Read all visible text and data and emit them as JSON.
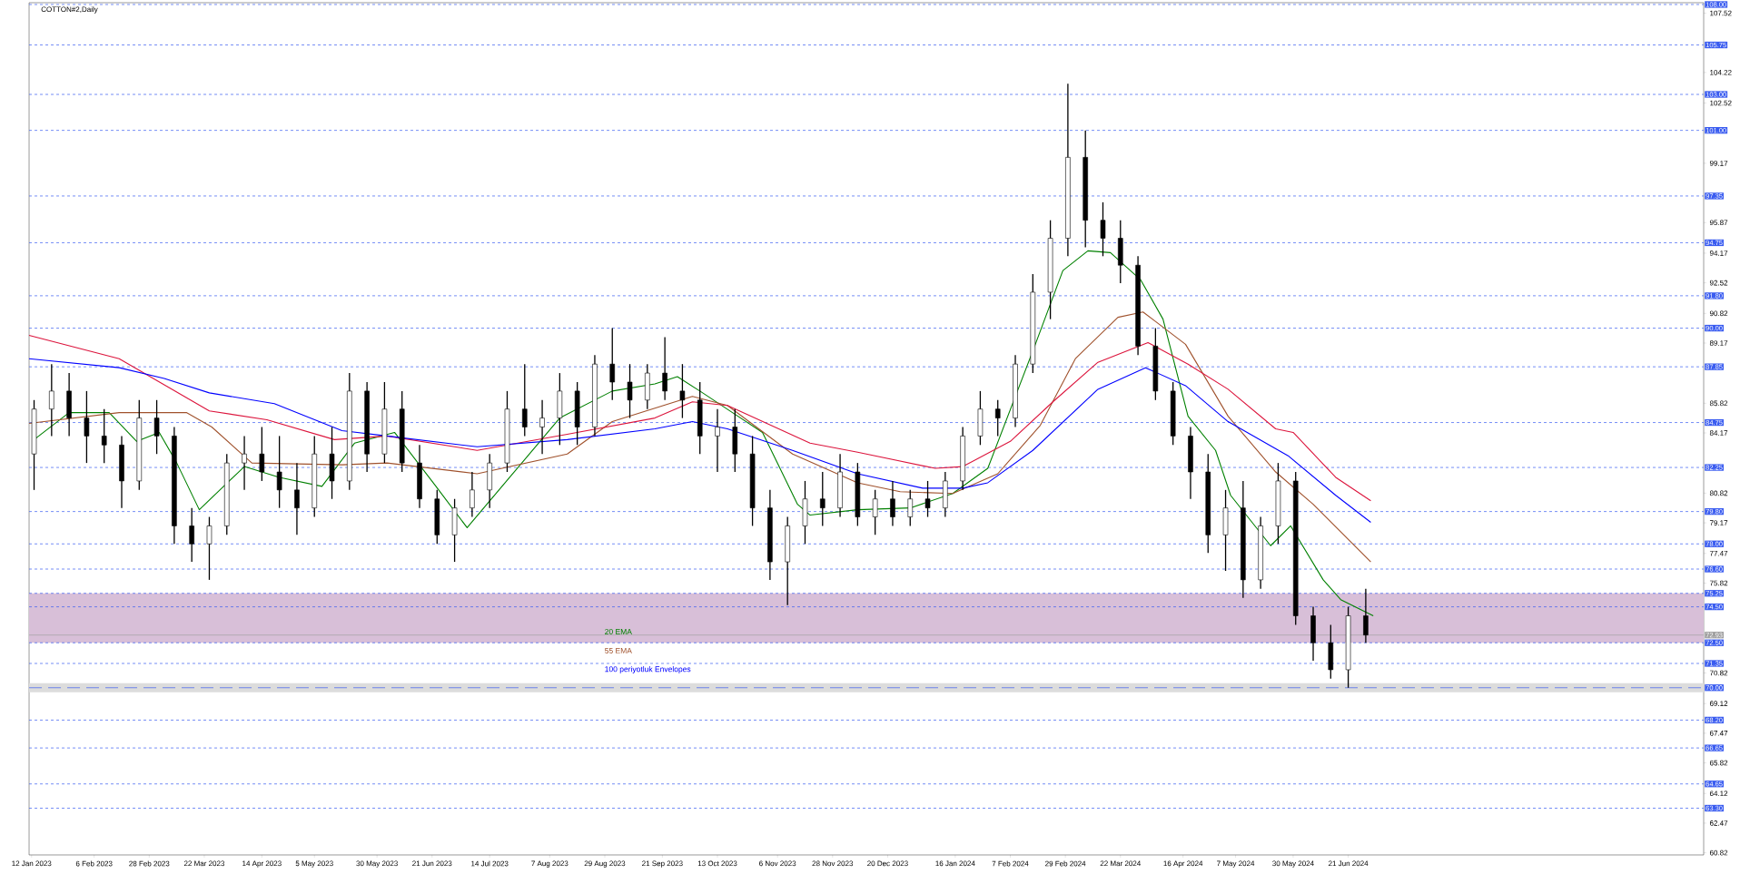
{
  "chart_data": {
    "type": "candlestick",
    "title": "COTTON#2,Daily",
    "xlim": [
      "2023-01-11",
      "2024-11-10"
    ],
    "ylim": [
      60.7,
      108.1
    ],
    "xticks": [
      {
        "value": "2023-01-12",
        "label": "12 Jan 2023"
      },
      {
        "value": "2023-02-06",
        "label": "6 Feb 2023"
      },
      {
        "value": "2023-02-28",
        "label": "28 Feb 2023"
      },
      {
        "value": "2023-03-22",
        "label": "22 Mar 2023"
      },
      {
        "value": "2023-04-14",
        "label": "14 Apr 2023"
      },
      {
        "value": "2023-05-05",
        "label": "5 May 2023"
      },
      {
        "value": "2023-05-30",
        "label": "30 May 2023"
      },
      {
        "value": "2023-06-21",
        "label": "21 Jun 2023"
      },
      {
        "value": "2023-07-14",
        "label": "14 Jul 2023"
      },
      {
        "value": "2023-08-07",
        "label": "7 Aug 2023"
      },
      {
        "value": "2023-08-29",
        "label": "29 Aug 2023"
      },
      {
        "value": "2023-09-21",
        "label": "21 Sep 2023"
      },
      {
        "value": "2023-10-13",
        "label": "13 Oct 2023"
      },
      {
        "value": "2023-11-06",
        "label": "6 Nov 2023"
      },
      {
        "value": "2023-11-28",
        "label": "28 Nov 2023"
      },
      {
        "value": "2023-12-20",
        "label": "20 Dec 2023"
      },
      {
        "value": "2024-01-16",
        "label": "16 Jan 2024"
      },
      {
        "value": "2024-02-07",
        "label": "7 Feb 2024"
      },
      {
        "value": "2024-02-29",
        "label": "29 Feb 2024"
      },
      {
        "value": "2024-03-22",
        "label": "22 Mar 2024"
      },
      {
        "value": "2024-04-16",
        "label": "16 Apr 2024"
      },
      {
        "value": "2024-05-07",
        "label": "7 May 2024"
      },
      {
        "value": "2024-05-30",
        "label": "30 May 2024"
      },
      {
        "value": "2024-06-21",
        "label": "21 Jun 2024"
      }
    ],
    "yticks": [
      107.52,
      104.22,
      102.52,
      99.17,
      95.87,
      94.17,
      92.52,
      90.82,
      89.17,
      85.82,
      84.17,
      80.82,
      79.17,
      77.47,
      75.82,
      70.82,
      69.12,
      67.47,
      65.82,
      64.12,
      62.47,
      60.82
    ],
    "x": [
      "2023-01-13",
      "2023-01-20",
      "2023-01-27",
      "2023-02-03",
      "2023-02-10",
      "2023-02-17",
      "2023-02-24",
      "2023-03-03",
      "2023-03-10",
      "2023-03-17",
      "2023-03-24",
      "2023-03-31",
      "2023-04-07",
      "2023-04-14",
      "2023-04-21",
      "2023-04-28",
      "2023-05-05",
      "2023-05-12",
      "2023-05-19",
      "2023-05-26",
      "2023-06-02",
      "2023-06-09",
      "2023-06-16",
      "2023-06-23",
      "2023-06-30",
      "2023-07-07",
      "2023-07-14",
      "2023-07-21",
      "2023-07-28",
      "2023-08-04",
      "2023-08-11",
      "2023-08-18",
      "2023-08-25",
      "2023-09-01",
      "2023-09-08",
      "2023-09-15",
      "2023-09-22",
      "2023-09-29",
      "2023-10-06",
      "2023-10-13",
      "2023-10-20",
      "2023-10-27",
      "2023-11-03",
      "2023-11-10",
      "2023-11-17",
      "2023-11-24",
      "2023-12-01",
      "2023-12-08",
      "2023-12-15",
      "2023-12-22",
      "2023-12-29",
      "2024-01-05",
      "2024-01-12",
      "2024-01-19",
      "2024-01-26",
      "2024-02-02",
      "2024-02-09",
      "2024-02-16",
      "2024-02-23",
      "2024-03-01",
      "2024-03-08",
      "2024-03-15",
      "2024-03-22",
      "2024-03-29",
      "2024-04-05",
      "2024-04-12",
      "2024-04-19",
      "2024-04-26",
      "2024-05-03",
      "2024-05-10",
      "2024-05-17",
      "2024-05-24",
      "2024-05-31",
      "2024-06-07",
      "2024-06-14",
      "2024-06-21",
      "2024-06-28"
    ],
    "ohlc": [
      [
        83.0,
        86.0,
        81.0,
        85.5
      ],
      [
        85.5,
        88.0,
        84.0,
        86.5
      ],
      [
        86.5,
        87.5,
        84.0,
        85.0
      ],
      [
        85.0,
        86.5,
        82.5,
        84.0
      ],
      [
        84.0,
        85.5,
        82.5,
        83.5
      ],
      [
        83.5,
        84.0,
        80.0,
        81.5
      ],
      [
        81.5,
        86.0,
        81.0,
        85.0
      ],
      [
        85.0,
        86.0,
        83.0,
        84.0
      ],
      [
        84.0,
        84.5,
        78.0,
        79.0
      ],
      [
        79.0,
        80.0,
        77.0,
        78.0
      ],
      [
        78.0,
        79.5,
        76.0,
        79.0
      ],
      [
        79.0,
        83.0,
        78.5,
        82.5
      ],
      [
        82.5,
        84.0,
        81.0,
        83.0
      ],
      [
        83.0,
        84.5,
        81.5,
        82.0
      ],
      [
        82.0,
        84.0,
        80.0,
        81.0
      ],
      [
        81.0,
        82.5,
        78.5,
        80.0
      ],
      [
        80.0,
        84.0,
        79.5,
        83.0
      ],
      [
        83.0,
        84.5,
        80.5,
        81.5
      ],
      [
        81.5,
        87.5,
        81.0,
        86.5
      ],
      [
        86.5,
        87.0,
        82.0,
        83.0
      ],
      [
        83.0,
        87.0,
        82.5,
        85.5
      ],
      [
        85.5,
        86.5,
        82.0,
        82.5
      ],
      [
        82.5,
        83.5,
        80.0,
        80.5
      ],
      [
        80.5,
        81.0,
        78.0,
        78.5
      ],
      [
        78.5,
        80.5,
        77.0,
        80.0
      ],
      [
        80.0,
        82.0,
        79.5,
        81.0
      ],
      [
        81.0,
        83.0,
        80.0,
        82.5
      ],
      [
        82.5,
        86.5,
        82.0,
        85.5
      ],
      [
        85.5,
        88.0,
        84.0,
        84.5
      ],
      [
        84.5,
        86.0,
        83.0,
        85.0
      ],
      [
        85.0,
        87.5,
        83.5,
        86.5
      ],
      [
        86.5,
        87.0,
        83.5,
        84.5
      ],
      [
        84.5,
        88.5,
        84.0,
        88.0
      ],
      [
        88.0,
        90.0,
        86.0,
        87.0
      ],
      [
        87.0,
        88.0,
        85.0,
        86.0
      ],
      [
        86.0,
        88.0,
        85.5,
        87.5
      ],
      [
        87.5,
        89.5,
        86.0,
        86.5
      ],
      [
        86.5,
        88.0,
        85.0,
        86.0
      ],
      [
        86.0,
        87.0,
        83.0,
        84.0
      ],
      [
        84.0,
        85.5,
        82.0,
        84.5
      ],
      [
        84.5,
        85.5,
        82.0,
        83.0
      ],
      [
        83.0,
        84.0,
        79.0,
        80.0
      ],
      [
        80.0,
        81.0,
        76.0,
        77.0
      ],
      [
        77.0,
        79.5,
        74.6,
        79.0
      ],
      [
        79.0,
        81.5,
        78.0,
        80.5
      ],
      [
        80.5,
        82.0,
        79.0,
        80.0
      ],
      [
        80.0,
        83.0,
        79.5,
        82.0
      ],
      [
        82.0,
        82.5,
        79.0,
        79.5
      ],
      [
        79.5,
        81.0,
        78.5,
        80.5
      ],
      [
        80.5,
        81.5,
        79.0,
        79.5
      ],
      [
        79.5,
        81.0,
        79.0,
        80.5
      ],
      [
        80.5,
        81.5,
        79.5,
        80.0
      ],
      [
        80.0,
        82.0,
        79.5,
        81.5
      ],
      [
        81.5,
        84.5,
        81.0,
        84.0
      ],
      [
        84.0,
        86.5,
        83.5,
        85.5
      ],
      [
        85.5,
        86.0,
        84.0,
        85.0
      ],
      [
        85.0,
        88.5,
        84.5,
        88.0
      ],
      [
        88.0,
        93.0,
        87.5,
        92.0
      ],
      [
        92.0,
        96.0,
        90.5,
        95.0
      ],
      [
        95.0,
        103.6,
        94.0,
        99.5
      ],
      [
        99.5,
        101.0,
        94.5,
        96.0
      ],
      [
        96.0,
        97.0,
        94.0,
        95.0
      ],
      [
        95.0,
        96.0,
        92.5,
        93.5
      ],
      [
        93.5,
        94.0,
        88.5,
        89.0
      ],
      [
        89.0,
        90.0,
        86.0,
        86.5
      ],
      [
        86.5,
        87.0,
        83.5,
        84.0
      ],
      [
        84.0,
        84.5,
        80.5,
        82.0
      ],
      [
        82.0,
        83.0,
        77.5,
        78.5
      ],
      [
        78.5,
        81.0,
        76.5,
        80.0
      ],
      [
        80.0,
        81.5,
        75.0,
        76.0
      ],
      [
        76.0,
        79.5,
        75.5,
        79.0
      ],
      [
        79.0,
        82.5,
        78.0,
        81.5
      ],
      [
        81.5,
        82.0,
        73.5,
        74.0
      ],
      [
        74.0,
        74.5,
        71.5,
        72.5
      ],
      [
        72.5,
        73.5,
        70.5,
        71.0
      ],
      [
        71.0,
        74.5,
        70.0,
        74.0
      ],
      [
        74.0,
        75.5,
        72.5,
        72.93
      ]
    ],
    "series": [
      {
        "name": "20 EMA",
        "type": "line",
        "color": "#008000",
        "x": [
          "2023-01-13",
          "2023-01-27",
          "2023-02-12",
          "2023-02-23",
          "2023-03-04",
          "2023-03-11",
          "2023-03-20",
          "2023-04-07",
          "2023-04-21",
          "2023-05-08",
          "2023-05-21",
          "2023-06-06",
          "2023-06-22",
          "2023-07-05",
          "2023-07-22",
          "2023-08-11",
          "2023-09-01",
          "2023-09-18",
          "2023-09-27",
          "2023-10-06",
          "2023-10-19",
          "2023-10-31",
          "2023-11-14",
          "2023-11-19",
          "2023-12-08",
          "2023-12-29",
          "2024-01-15",
          "2024-01-29",
          "2024-02-17",
          "2024-02-28",
          "2024-03-09",
          "2024-03-18",
          "2024-03-30",
          "2024-04-08",
          "2024-04-18",
          "2024-04-29",
          "2024-05-05",
          "2024-05-21",
          "2024-05-29",
          "2024-06-11",
          "2024-06-18",
          "2024-07-01"
        ],
        "values": [
          83.8,
          85.3,
          85.3,
          83.7,
          84.2,
          82.5,
          79.9,
          82.3,
          81.7,
          81.2,
          83.6,
          84.2,
          81.3,
          78.9,
          81.7,
          85.0,
          86.5,
          86.9,
          87.3,
          86.5,
          85.3,
          84.2,
          80.2,
          79.6,
          79.9,
          80.0,
          80.8,
          82.2,
          89.1,
          93.2,
          94.3,
          94.2,
          92.7,
          90.5,
          85.1,
          83.2,
          80.7,
          77.9,
          79.0,
          76.0,
          74.9,
          74.0
        ]
      },
      {
        "name": "55 EMA",
        "type": "line",
        "color": "#a0522d",
        "x": [
          "2023-01-11",
          "2023-02-16",
          "2023-03-15",
          "2023-03-25",
          "2023-04-10",
          "2023-05-16",
          "2023-06-03",
          "2023-07-09",
          "2023-08-14",
          "2023-09-01",
          "2023-10-03",
          "2023-10-17",
          "2023-11-12",
          "2023-12-08",
          "2023-12-25",
          "2024-01-15",
          "2024-02-02",
          "2024-02-19",
          "2024-03-04",
          "2024-03-21",
          "2024-03-31",
          "2024-04-17",
          "2024-05-04",
          "2024-05-23",
          "2024-06-07",
          "2024-06-30"
        ],
        "values": [
          84.7,
          85.3,
          85.3,
          84.5,
          82.5,
          82.4,
          82.5,
          81.9,
          83.0,
          84.8,
          86.2,
          85.7,
          83.0,
          81.4,
          80.9,
          80.8,
          81.9,
          84.6,
          88.3,
          90.6,
          90.9,
          89.1,
          85.1,
          82.0,
          80.2,
          77.0
        ]
      },
      {
        "type": "line",
        "color": "#dc143c",
        "x": [
          "2023-01-11",
          "2023-02-16",
          "2023-03-24",
          "2023-04-16",
          "2023-05-13",
          "2023-06-03",
          "2023-07-09",
          "2023-08-14",
          "2023-09-18",
          "2023-10-03",
          "2023-10-17",
          "2023-11-19",
          "2023-12-08",
          "2024-01-08",
          "2024-01-19",
          "2024-02-07",
          "2024-02-24",
          "2024-03-13",
          "2024-04-02",
          "2024-04-18",
          "2024-05-04",
          "2024-05-23",
          "2024-05-30",
          "2024-06-16",
          "2024-06-30"
        ],
        "values": [
          89.6,
          88.3,
          85.4,
          84.9,
          83.8,
          84.0,
          83.2,
          84.1,
          85.0,
          85.9,
          85.7,
          83.6,
          83.1,
          82.2,
          82.3,
          83.7,
          85.9,
          88.1,
          89.2,
          88.0,
          86.6,
          84.4,
          84.2,
          81.7,
          80.4
        ]
      },
      {
        "name": "100 periyotluk Envelopes",
        "type": "line",
        "color": "#0000ff",
        "x": [
          "2023-01-11",
          "2023-02-16",
          "2023-03-06",
          "2023-03-24",
          "2023-04-19",
          "2023-05-16",
          "2023-06-03",
          "2023-07-09",
          "2023-08-14",
          "2023-09-18",
          "2023-10-03",
          "2023-10-17",
          "2023-11-12",
          "2023-12-08",
          "2024-01-03",
          "2024-01-19",
          "2024-01-29",
          "2024-02-16",
          "2024-03-13",
          "2024-04-01",
          "2024-04-17",
          "2024-05-04",
          "2024-05-28",
          "2024-06-16",
          "2024-06-30"
        ],
        "values": [
          88.3,
          87.8,
          87.2,
          86.4,
          85.8,
          84.3,
          84.0,
          83.4,
          83.8,
          84.4,
          84.8,
          84.4,
          83.2,
          81.9,
          81.1,
          81.1,
          81.4,
          83.2,
          86.6,
          87.8,
          86.8,
          84.8,
          82.9,
          80.7,
          79.2
        ]
      }
    ],
    "bands": [
      {
        "axis": "y",
        "from": 72.5,
        "to": 75.25,
        "color": "#d8bfd8"
      },
      {
        "axis": "y",
        "from": 69.75,
        "to": 70.25,
        "color": "#dcdcdc"
      }
    ],
    "ref_lines": [
      {
        "axis": "y",
        "value": 108.0,
        "label": "108.00",
        "color": "#3a5cf0",
        "line_style": "dotted"
      },
      {
        "axis": "y",
        "value": 105.75,
        "label": "105.75",
        "color": "#3a5cf0",
        "line_style": "dotted"
      },
      {
        "axis": "y",
        "value": 103.0,
        "label": "103.00",
        "color": "#3a5cf0",
        "line_style": "dotted"
      },
      {
        "axis": "y",
        "value": 101.0,
        "label": "101.00",
        "color": "#3a5cf0",
        "line_style": "dotted"
      },
      {
        "axis": "y",
        "value": 97.35,
        "label": "97.35",
        "color": "#3a5cf0",
        "line_style": "dotted"
      },
      {
        "axis": "y",
        "value": 94.75,
        "label": "94.75",
        "color": "#3a5cf0",
        "line_style": "dotted"
      },
      {
        "axis": "y",
        "value": 91.8,
        "label": "91.80",
        "color": "#3a5cf0",
        "line_style": "dotted"
      },
      {
        "axis": "y",
        "value": 90.0,
        "label": "90.00",
        "color": "#3a5cf0",
        "line_style": "dotted"
      },
      {
        "axis": "y",
        "value": 87.85,
        "label": "87.85",
        "color": "#3a5cf0",
        "line_style": "dotted"
      },
      {
        "axis": "y",
        "value": 84.75,
        "label": "84.75",
        "color": "#3a5cf0",
        "line_style": "dotted"
      },
      {
        "axis": "y",
        "value": 82.25,
        "label": "82.25",
        "color": "#3a5cf0",
        "line_style": "dotted"
      },
      {
        "axis": "y",
        "value": 79.8,
        "label": "79.80",
        "color": "#3a5cf0",
        "line_style": "dotted"
      },
      {
        "axis": "y",
        "value": 78.0,
        "label": "78.00",
        "color": "#3a5cf0",
        "line_style": "dotted"
      },
      {
        "axis": "y",
        "value": 76.6,
        "label": "76.60",
        "color": "#3a5cf0",
        "line_style": "dotted"
      },
      {
        "axis": "y",
        "value": 75.25,
        "label": "75.25",
        "color": "#3a5cf0",
        "line_style": "dotted"
      },
      {
        "axis": "y",
        "value": 74.5,
        "label": "74.50",
        "color": "#3a5cf0",
        "line_style": "dotted"
      },
      {
        "axis": "y",
        "value": 72.93,
        "label": "72.93",
        "color": "#a0a0a0",
        "line_style": "solid"
      },
      {
        "axis": "y",
        "value": 72.5,
        "label": "72.50",
        "color": "#3a5cf0",
        "line_style": "dotted"
      },
      {
        "axis": "y",
        "value": 71.35,
        "label": "71.35",
        "color": "#3a5cf0",
        "line_style": "dotted"
      },
      {
        "axis": "y",
        "value": 70.0,
        "label": "70.00",
        "color": "#3a5cf0",
        "line_style": "dashed"
      },
      {
        "axis": "y",
        "value": 68.2,
        "label": "68.20",
        "color": "#3a5cf0",
        "line_style": "dotted"
      },
      {
        "axis": "y",
        "value": 66.65,
        "label": "66.65",
        "color": "#3a5cf0",
        "line_style": "dotted"
      },
      {
        "axis": "y",
        "value": 64.65,
        "label": "64.65",
        "color": "#3a5cf0",
        "line_style": "dotted"
      },
      {
        "axis": "y",
        "value": 63.3,
        "label": "63.30",
        "color": "#3a5cf0",
        "line_style": "dotted"
      }
    ]
  }
}
